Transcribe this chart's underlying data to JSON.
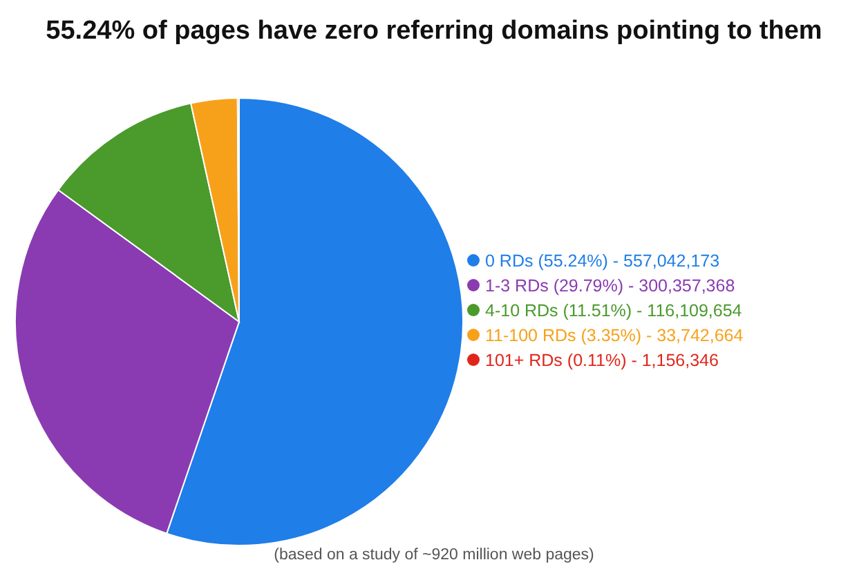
{
  "chart_data": {
    "type": "pie",
    "title": "55.24% of pages have zero referring domains pointing to them",
    "categories": [
      "0 RDs (55.24%) - 557,042,173",
      "1-3 RDs (29.79%) - 300,357,368",
      "4-10 RDs (11.51%) - 116,109,654",
      "11-100 RDs (3.35%) - 33,742,664",
      "101+ RDs (0.11%) - 1,156,346"
    ],
    "values": [
      55.24,
      29.79,
      11.51,
      3.35,
      0.11
    ],
    "colors": [
      "#1f7ee8",
      "#8a3bb2",
      "#4a9a2c",
      "#f7a11a",
      "#e0261b"
    ],
    "legend": "right",
    "annotations": [
      "(based on a study of ~920 million web pages)"
    ]
  }
}
